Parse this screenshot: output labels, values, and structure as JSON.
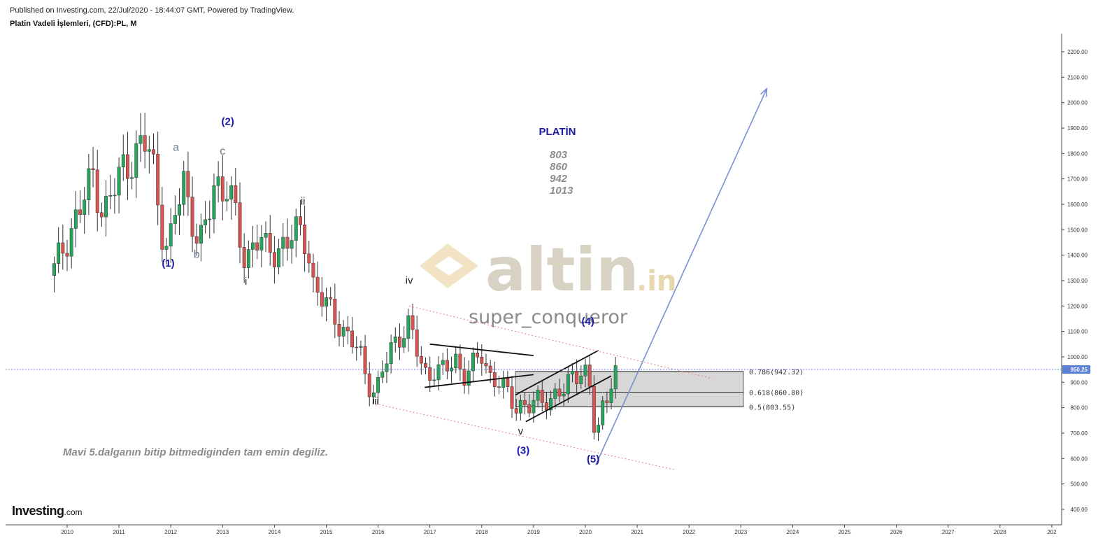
{
  "header": {
    "published": "Published on Investing.com, 22/Jul/2020 - 18:44:07 GMT, Powered by TradingView.",
    "symbol": "Platin Vadeli İşlemleri, (CFD):PL, M"
  },
  "brand": {
    "name": "Investing",
    "suffix": ".com"
  },
  "watermark": {
    "brand": "altin",
    "tld": ".in",
    "author": "super_conqueror"
  },
  "annotations": {
    "title": "PLATİN",
    "levels": [
      "803",
      "860",
      "942",
      "1013"
    ],
    "note": "Mavi  5.dalganın bitip bitmediginden tam emin degiliz."
  },
  "colors": {
    "up": "#26a65b",
    "down": "#d9534f",
    "wave_label": "#1a1aa6",
    "price_line": "#5b7fd6",
    "channel": "#e37c8a",
    "arrow": "#7b8fd0",
    "fib_box": "#d3d3d3"
  },
  "chart_data": {
    "type": "candlestick",
    "interval": "monthly",
    "x_ticks": [
      "2010",
      "2011",
      "2012",
      "2013",
      "2014",
      "2015",
      "2016",
      "2017",
      "2018",
      "2019",
      "2020",
      "2021",
      "2022",
      "2023",
      "2024",
      "2025",
      "2026",
      "2027",
      "2028",
      "202"
    ],
    "y_ticks": [
      "400.00",
      "500.00",
      "600.00",
      "700.00",
      "800.00",
      "900.00",
      "1000.00",
      "1100.00",
      "1200.00",
      "1300.00",
      "1400.00",
      "1500.00",
      "1600.00",
      "1700.00",
      "1800.00",
      "1900.00",
      "2000.00",
      "2100.00",
      "2200.00"
    ],
    "ylim": [
      370,
      2270
    ],
    "last_price": {
      "value": 950.25,
      "label": "950.25"
    },
    "close_path": [
      [
        2009.75,
        1340
      ],
      [
        2010.0,
        1470
      ],
      [
        2010.3,
        1600
      ],
      [
        2010.5,
        1720
      ],
      [
        2010.7,
        1560
      ],
      [
        2010.9,
        1650
      ],
      [
        2011.1,
        1760
      ],
      [
        2011.3,
        1790
      ],
      [
        2011.55,
        1840
      ],
      [
        2011.7,
        1720
      ],
      [
        2011.8,
        1530
      ],
      [
        2011.95,
        1400
      ],
      [
        2012.1,
        1570
      ],
      [
        2012.25,
        1700
      ],
      [
        2012.4,
        1560
      ],
      [
        2012.55,
        1430
      ],
      [
        2012.7,
        1520
      ],
      [
        2012.85,
        1700
      ],
      [
        2013.0,
        1660
      ],
      [
        2013.1,
        1680
      ],
      [
        2013.2,
        1590
      ],
      [
        2013.3,
        1480
      ],
      [
        2013.45,
        1360
      ],
      [
        2013.55,
        1450
      ],
      [
        2013.7,
        1480
      ],
      [
        2013.85,
        1400
      ],
      [
        2014.0,
        1410
      ],
      [
        2014.15,
        1450
      ],
      [
        2014.4,
        1480
      ],
      [
        2014.55,
        1480
      ],
      [
        2014.65,
        1430
      ],
      [
        2014.75,
        1290
      ],
      [
        2014.95,
        1210
      ],
      [
        2015.2,
        1150
      ],
      [
        2015.45,
        1070
      ],
      [
        2015.65,
        1010
      ],
      [
        2015.8,
        900
      ],
      [
        2015.95,
        860
      ],
      [
        2016.1,
        950
      ],
      [
        2016.3,
        1050
      ],
      [
        2016.45,
        1100
      ],
      [
        2016.6,
        1130
      ],
      [
        2016.8,
        980
      ],
      [
        2016.95,
        920
      ],
      [
        2017.1,
        960
      ],
      [
        2017.3,
        940
      ],
      [
        2017.5,
        990
      ],
      [
        2017.65,
        930
      ],
      [
        2018.0,
        1000
      ],
      [
        2018.15,
        930
      ],
      [
        2018.35,
        900
      ],
      [
        2018.5,
        850
      ],
      [
        2018.65,
        790
      ],
      [
        2018.8,
        830
      ],
      [
        2018.95,
        800
      ],
      [
        2019.1,
        830
      ],
      [
        2019.3,
        820
      ],
      [
        2019.45,
        880
      ],
      [
        2019.6,
        850
      ],
      [
        2019.75,
        930
      ],
      [
        2019.9,
        940
      ],
      [
        2020.0,
        950
      ],
      [
        2020.1,
        880
      ],
      [
        2020.2,
        630
      ],
      [
        2020.3,
        780
      ],
      [
        2020.45,
        870
      ],
      [
        2020.55,
        950
      ]
    ],
    "wave_labels": [
      {
        "text": "(1)",
        "x": 2011.95,
        "y": 1355,
        "style": "blue"
      },
      {
        "text": "(2)",
        "x": 2013.1,
        "y": 1912,
        "style": "blue"
      },
      {
        "text": "(3)",
        "x": 2018.8,
        "y": 619,
        "style": "blue"
      },
      {
        "text": "(4)",
        "x": 2020.05,
        "y": 1127,
        "style": "blue"
      },
      {
        "text": "(5)",
        "x": 2020.15,
        "y": 584,
        "style": "blue"
      },
      {
        "text": "a",
        "x": 2012.1,
        "y": 1810,
        "style": "grey"
      },
      {
        "text": "b",
        "x": 2012.5,
        "y": 1390,
        "style": "grey"
      },
      {
        "text": "c",
        "x": 2013.0,
        "y": 1795,
        "style": "grey"
      },
      {
        "text": "i",
        "x": 2013.45,
        "y": 1283,
        "style": "dark"
      },
      {
        "text": "ii",
        "x": 2014.55,
        "y": 1598,
        "style": "dark"
      },
      {
        "text": "iii",
        "x": 2015.95,
        "y": 813,
        "style": "dark"
      },
      {
        "text": "iv",
        "x": 2016.6,
        "y": 1288,
        "style": "dark"
      },
      {
        "text": "v",
        "x": 2018.75,
        "y": 695,
        "style": "dark"
      }
    ],
    "fibonacci": [
      {
        "ratio": "0.786",
        "value": 942.32,
        "label": "0.786(942.32)"
      },
      {
        "ratio": "0.618",
        "value": 860.8,
        "label": "0.618(860.80)"
      },
      {
        "ratio": "0.5",
        "value": 803.55,
        "label": "0.5(803.55)"
      }
    ],
    "fib_box_x": [
      2018.65,
      2023.05
    ],
    "trendlines": [
      {
        "name": "triangle-upper",
        "points": [
          [
            2017.0,
            1050
          ],
          [
            2019.0,
            1005
          ]
        ],
        "style": "black"
      },
      {
        "name": "triangle-lower",
        "points": [
          [
            2016.9,
            880
          ],
          [
            2019.0,
            930
          ]
        ],
        "style": "black"
      },
      {
        "name": "wedge-upper",
        "points": [
          [
            2018.65,
            850
          ],
          [
            2020.25,
            1025
          ]
        ],
        "style": "black"
      },
      {
        "name": "wedge-lower",
        "points": [
          [
            2018.85,
            745
          ],
          [
            2020.5,
            925
          ]
        ],
        "style": "black"
      },
      {
        "name": "channel-upper",
        "points": [
          [
            2016.6,
            1200
          ],
          [
            2022.45,
            915
          ]
        ],
        "style": "channel"
      },
      {
        "name": "channel-lower",
        "points": [
          [
            2015.95,
            815
          ],
          [
            2021.75,
            555
          ]
        ],
        "style": "channel"
      },
      {
        "name": "target-arrow",
        "points": [
          [
            2020.2,
            575
          ],
          [
            2023.5,
            2055
          ]
        ],
        "style": "arrow"
      }
    ]
  }
}
